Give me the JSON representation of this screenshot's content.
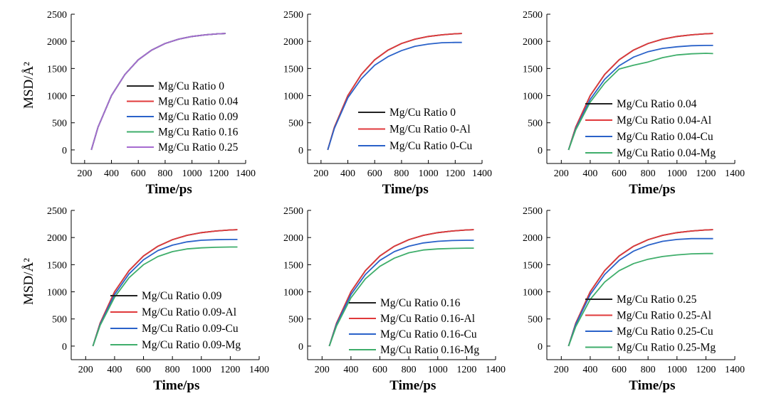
{
  "chart_data": [
    {
      "type": "line",
      "xlabel": "Time/ps",
      "ylabel": "MSD/Å²",
      "xlim": [
        100,
        1400
      ],
      "ylim": [
        -250,
        2500
      ],
      "xticks": [
        "200",
        "400",
        "600",
        "800",
        "1000",
        "1200",
        "1400"
      ],
      "yticks": [
        "0",
        "500",
        "1000",
        "1500",
        "2000",
        "2500"
      ],
      "legend_position": "right-center",
      "series": [
        {
          "name": "Mg/Cu Ratio 0",
          "color": "#222222",
          "x": [
            250,
            300,
            400,
            500,
            600,
            700,
            800,
            900,
            1000,
            1100,
            1200,
            1250
          ],
          "y": [
            0,
            420,
            1000,
            1390,
            1660,
            1840,
            1960,
            2040,
            2090,
            2120,
            2140,
            2145
          ]
        },
        {
          "name": "Mg/Cu Ratio 0.04",
          "color": "#e0393b",
          "x": [
            250,
            300,
            400,
            500,
            600,
            700,
            800,
            900,
            1000,
            1100,
            1200,
            1250
          ],
          "y": [
            0,
            420,
            1000,
            1390,
            1660,
            1840,
            1960,
            2040,
            2090,
            2120,
            2140,
            2145
          ]
        },
        {
          "name": "Mg/Cu Ratio 0.09",
          "color": "#2a62c9",
          "x": [
            250,
            300,
            400,
            500,
            600,
            700,
            800,
            900,
            1000,
            1100,
            1200,
            1250
          ],
          "y": [
            0,
            420,
            1000,
            1390,
            1660,
            1840,
            1960,
            2040,
            2090,
            2120,
            2140,
            2145
          ]
        },
        {
          "name": "Mg/Cu Ratio 0.16",
          "color": "#3fae6b",
          "x": [
            250,
            300,
            400,
            500,
            600,
            700,
            800,
            900,
            1000,
            1100,
            1200,
            1250
          ],
          "y": [
            0,
            420,
            1000,
            1390,
            1660,
            1840,
            1960,
            2040,
            2090,
            2120,
            2140,
            2145
          ]
        },
        {
          "name": "Mg/Cu Ratio 0.25",
          "color": "#a66bd0",
          "x": [
            250,
            300,
            400,
            500,
            600,
            700,
            800,
            900,
            1000,
            1100,
            1200,
            1250
          ],
          "y": [
            0,
            420,
            1000,
            1390,
            1660,
            1840,
            1960,
            2040,
            2090,
            2120,
            2140,
            2145
          ]
        }
      ]
    },
    {
      "type": "line",
      "xlabel": "Time/ps",
      "ylabel": "",
      "xlim": [
        100,
        1400
      ],
      "ylim": [
        -250,
        2500
      ],
      "xticks": [
        "200",
        "400",
        "600",
        "800",
        "1000",
        "1200",
        "1400"
      ],
      "yticks": [
        "0",
        "500",
        "1000",
        "1500",
        "2000",
        "2500"
      ],
      "legend_position": "right-center",
      "series": [
        {
          "name": "Mg/Cu Ratio 0",
          "color": "#222222",
          "x": [
            250,
            300,
            400,
            500,
            600,
            700,
            800,
            900,
            1000,
            1100,
            1200,
            1250
          ],
          "y": [
            0,
            420,
            1000,
            1390,
            1660,
            1840,
            1960,
            2040,
            2090,
            2120,
            2140,
            2145
          ]
        },
        {
          "name": "Mg/Cu Ratio 0-Al",
          "color": "#e0393b",
          "x": [
            250,
            300,
            400,
            500,
            600,
            700,
            800,
            900,
            1000,
            1100,
            1200,
            1250
          ],
          "y": [
            0,
            420,
            1000,
            1390,
            1660,
            1840,
            1960,
            2040,
            2090,
            2120,
            2140,
            2145
          ]
        },
        {
          "name": "Mg/Cu Ratio 0-Cu",
          "color": "#2a62c9",
          "x": [
            250,
            300,
            400,
            500,
            600,
            700,
            800,
            900,
            1000,
            1100,
            1200,
            1250
          ],
          "y": [
            0,
            400,
            960,
            1310,
            1560,
            1720,
            1830,
            1910,
            1950,
            1975,
            1980,
            1980
          ]
        }
      ]
    },
    {
      "type": "line",
      "xlabel": "Time/ps",
      "ylabel": "",
      "xlim": [
        100,
        1400
      ],
      "ylim": [
        -250,
        2500
      ],
      "xticks": [
        "200",
        "400",
        "600",
        "800",
        "1000",
        "1200",
        "1400"
      ],
      "yticks": [
        "0",
        "500",
        "1000",
        "1500",
        "2000",
        "2500"
      ],
      "legend_position": "right-center",
      "series": [
        {
          "name": "Mg/Cu Ratio 0.04",
          "color": "#222222",
          "x": [
            250,
            300,
            400,
            500,
            600,
            700,
            800,
            900,
            1000,
            1100,
            1200,
            1250
          ],
          "y": [
            0,
            420,
            1000,
            1390,
            1660,
            1840,
            1960,
            2040,
            2090,
            2120,
            2140,
            2145
          ]
        },
        {
          "name": "Mg/Cu Ratio 0.04-Al",
          "color": "#e0393b",
          "x": [
            250,
            300,
            400,
            500,
            600,
            700,
            800,
            900,
            1000,
            1100,
            1200,
            1250
          ],
          "y": [
            0,
            420,
            1000,
            1390,
            1660,
            1840,
            1960,
            2040,
            2090,
            2120,
            2140,
            2145
          ]
        },
        {
          "name": "Mg/Cu Ratio 0.04-Cu",
          "color": "#2a62c9",
          "x": [
            250,
            300,
            400,
            500,
            600,
            700,
            800,
            900,
            1000,
            1100,
            1200,
            1250
          ],
          "y": [
            0,
            390,
            930,
            1300,
            1550,
            1710,
            1810,
            1870,
            1900,
            1920,
            1925,
            1925
          ]
        },
        {
          "name": "Mg/Cu Ratio 0.04-Mg",
          "color": "#3fae6b",
          "x": [
            250,
            300,
            400,
            500,
            600,
            700,
            800,
            900,
            1000,
            1100,
            1200,
            1250
          ],
          "y": [
            0,
            370,
            880,
            1230,
            1490,
            1560,
            1620,
            1700,
            1750,
            1770,
            1780,
            1775
          ]
        }
      ]
    },
    {
      "type": "line",
      "xlabel": "Time/ps",
      "ylabel": "MSD/Å²",
      "xlim": [
        100,
        1400
      ],
      "ylim": [
        -250,
        2500
      ],
      "xticks": [
        "200",
        "400",
        "600",
        "800",
        "1000",
        "1200",
        "1400"
      ],
      "yticks": [
        "0",
        "500",
        "1000",
        "1500",
        "2000",
        "2500"
      ],
      "legend_position": "right-center",
      "series": [
        {
          "name": "Mg/Cu Ratio 0.09",
          "color": "#222222",
          "x": [
            250,
            300,
            400,
            500,
            600,
            700,
            800,
            900,
            1000,
            1100,
            1200,
            1250
          ],
          "y": [
            0,
            420,
            1000,
            1390,
            1660,
            1840,
            1960,
            2040,
            2090,
            2120,
            2140,
            2145
          ]
        },
        {
          "name": "Mg/Cu Ratio 0.09-Al",
          "color": "#e0393b",
          "x": [
            250,
            300,
            400,
            500,
            600,
            700,
            800,
            900,
            1000,
            1100,
            1200,
            1250
          ],
          "y": [
            0,
            420,
            1000,
            1390,
            1660,
            1840,
            1960,
            2040,
            2090,
            2120,
            2140,
            2145
          ]
        },
        {
          "name": "Mg/Cu Ratio 0.09-Cu",
          "color": "#2a62c9",
          "x": [
            250,
            300,
            400,
            500,
            600,
            700,
            800,
            900,
            1000,
            1100,
            1200,
            1250
          ],
          "y": [
            0,
            400,
            950,
            1330,
            1590,
            1760,
            1860,
            1920,
            1950,
            1960,
            1965,
            1965
          ]
        },
        {
          "name": "Mg/Cu Ratio 0.09-Mg",
          "color": "#3fae6b",
          "x": [
            250,
            300,
            400,
            500,
            600,
            700,
            800,
            900,
            1000,
            1100,
            1200,
            1250
          ],
          "y": [
            0,
            380,
            900,
            1260,
            1500,
            1650,
            1740,
            1790,
            1810,
            1820,
            1825,
            1825
          ]
        }
      ]
    },
    {
      "type": "line",
      "xlabel": "Time/ps",
      "ylabel": "",
      "xlim": [
        100,
        1400
      ],
      "ylim": [
        -250,
        2500
      ],
      "xticks": [
        "200",
        "400",
        "600",
        "800",
        "1000",
        "1200",
        "1400"
      ],
      "yticks": [
        "0",
        "500",
        "1000",
        "1500",
        "2000",
        "2500"
      ],
      "legend_position": "right-center",
      "series": [
        {
          "name": "Mg/Cu Ratio 0.16",
          "color": "#222222",
          "x": [
            250,
            300,
            400,
            500,
            600,
            700,
            800,
            900,
            1000,
            1100,
            1200,
            1250
          ],
          "y": [
            0,
            420,
            1000,
            1390,
            1660,
            1840,
            1960,
            2040,
            2090,
            2120,
            2140,
            2145
          ]
        },
        {
          "name": "Mg/Cu Ratio 0.16-Al",
          "color": "#e0393b",
          "x": [
            250,
            300,
            400,
            500,
            600,
            700,
            800,
            900,
            1000,
            1100,
            1200,
            1250
          ],
          "y": [
            0,
            420,
            1000,
            1390,
            1660,
            1840,
            1960,
            2040,
            2090,
            2120,
            2140,
            2145
          ]
        },
        {
          "name": "Mg/Cu Ratio 0.16-Cu",
          "color": "#2a62c9",
          "x": [
            250,
            300,
            400,
            500,
            600,
            700,
            800,
            900,
            1000,
            1100,
            1200,
            1250
          ],
          "y": [
            0,
            400,
            950,
            1320,
            1580,
            1740,
            1840,
            1900,
            1930,
            1945,
            1950,
            1950
          ]
        },
        {
          "name": "Mg/Cu Ratio 0.16-Mg",
          "color": "#3fae6b",
          "x": [
            250,
            300,
            400,
            500,
            600,
            700,
            800,
            900,
            1000,
            1100,
            1200,
            1250
          ],
          "y": [
            0,
            370,
            890,
            1240,
            1470,
            1620,
            1720,
            1770,
            1790,
            1800,
            1805,
            1805
          ]
        }
      ]
    },
    {
      "type": "line",
      "xlabel": "Time/ps",
      "ylabel": "",
      "xlim": [
        100,
        1400
      ],
      "ylim": [
        -250,
        2500
      ],
      "xticks": [
        "200",
        "400",
        "600",
        "800",
        "1000",
        "1200",
        "1400"
      ],
      "yticks": [
        "0",
        "500",
        "1000",
        "1500",
        "2000",
        "2500"
      ],
      "legend_position": "right-center",
      "series": [
        {
          "name": "Mg/Cu Ratio 0.25",
          "color": "#222222",
          "x": [
            250,
            300,
            400,
            500,
            600,
            700,
            800,
            900,
            1000,
            1100,
            1200,
            1250
          ],
          "y": [
            0,
            420,
            1000,
            1390,
            1660,
            1840,
            1960,
            2040,
            2090,
            2120,
            2140,
            2145
          ]
        },
        {
          "name": "Mg/Cu Ratio 0.25-Al",
          "color": "#e0393b",
          "x": [
            250,
            300,
            400,
            500,
            600,
            700,
            800,
            900,
            1000,
            1100,
            1200,
            1250
          ],
          "y": [
            0,
            420,
            1000,
            1390,
            1660,
            1840,
            1960,
            2040,
            2090,
            2120,
            2140,
            2145
          ]
        },
        {
          "name": "Mg/Cu Ratio 0.25-Cu",
          "color": "#2a62c9",
          "x": [
            250,
            300,
            400,
            500,
            600,
            700,
            800,
            900,
            1000,
            1100,
            1200,
            1250
          ],
          "y": [
            0,
            400,
            950,
            1320,
            1580,
            1750,
            1860,
            1930,
            1965,
            1980,
            1980,
            1980
          ]
        },
        {
          "name": "Mg/Cu Ratio 0.25-Mg",
          "color": "#3fae6b",
          "x": [
            250,
            300,
            400,
            500,
            600,
            700,
            800,
            900,
            1000,
            1100,
            1200,
            1250
          ],
          "y": [
            0,
            360,
            860,
            1180,
            1390,
            1520,
            1600,
            1650,
            1680,
            1700,
            1705,
            1705
          ]
        }
      ]
    }
  ]
}
